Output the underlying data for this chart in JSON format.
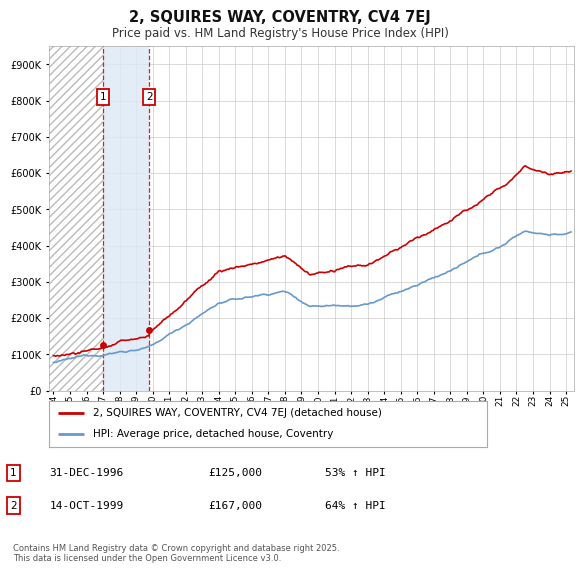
{
  "title": "2, SQUIRES WAY, COVENTRY, CV4 7EJ",
  "subtitle": "Price paid vs. HM Land Registry's House Price Index (HPI)",
  "legend_entry1": "2, SQUIRES WAY, COVENTRY, CV4 7EJ (detached house)",
  "legend_entry2": "HPI: Average price, detached house, Coventry",
  "table_rows": [
    {
      "num": "1",
      "date": "31-DEC-1996",
      "price": "£125,000",
      "hpi": "53% ↑ HPI"
    },
    {
      "num": "2",
      "date": "14-OCT-1999",
      "price": "£167,000",
      "hpi": "64% ↑ HPI"
    }
  ],
  "footnote": "Contains HM Land Registry data © Crown copyright and database right 2025.\nThis data is licensed under the Open Government Licence v3.0.",
  "ylim": [
    0,
    950000
  ],
  "yticks": [
    0,
    100000,
    200000,
    300000,
    400000,
    500000,
    600000,
    700000,
    800000,
    900000
  ],
  "xlim_start": 1993.75,
  "xlim_end": 2025.5,
  "sale1_x": 1996.99,
  "sale1_y": 125000,
  "sale2_x": 1999.79,
  "sale2_y": 167000,
  "vline1_x": 1996.99,
  "vline2_x": 1999.79,
  "hpi_line_color": "#6699cc",
  "price_line_color": "#cc0000",
  "marker_color": "#cc0000",
  "grid_color": "#cccccc",
  "background_color": "#ffffff",
  "plot_bg_color": "#ffffff",
  "hatch_color": "#bbbbbb",
  "between_color": "#ddeeff"
}
